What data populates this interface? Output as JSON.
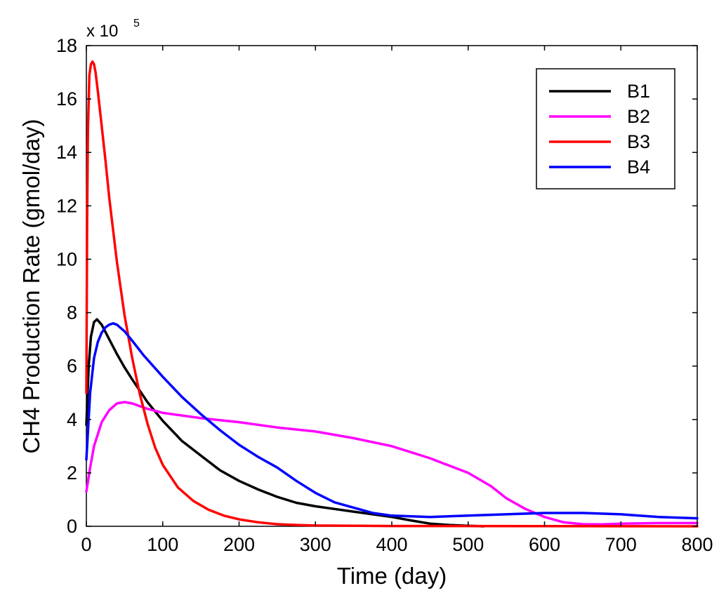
{
  "chart_data": {
    "type": "line",
    "title": "",
    "xlabel": "Time (day)",
    "ylabel": "CH4 Production Rate (gmol/day)",
    "y_multiplier_base": "x 10",
    "y_multiplier_exp": "5",
    "xlim": [
      0,
      800
    ],
    "ylim": [
      0,
      18
    ],
    "xticks": [
      0,
      100,
      200,
      300,
      400,
      500,
      600,
      700,
      800
    ],
    "yticks": [
      0,
      2,
      4,
      6,
      8,
      10,
      12,
      14,
      16,
      18
    ],
    "grid": false,
    "legend_position": "top-right",
    "series": [
      {
        "name": "B1",
        "color": "#000000",
        "x": [
          0,
          3,
          6,
          10,
          14,
          20,
          30,
          40,
          50,
          60,
          80,
          100,
          125,
          150,
          175,
          200,
          225,
          250,
          275,
          300,
          325,
          350,
          375,
          400,
          425,
          450,
          475,
          500,
          520
        ],
        "y": [
          3.8,
          6.0,
          7.1,
          7.65,
          7.75,
          7.55,
          7.0,
          6.45,
          5.95,
          5.5,
          4.65,
          3.95,
          3.2,
          2.65,
          2.1,
          1.7,
          1.38,
          1.1,
          0.88,
          0.75,
          0.65,
          0.55,
          0.45,
          0.35,
          0.22,
          0.1,
          0.05,
          0.02,
          0.0
        ]
      },
      {
        "name": "B2",
        "color": "#ff00ff",
        "x": [
          0,
          5,
          10,
          20,
          30,
          40,
          50,
          60,
          70,
          80,
          100,
          150,
          200,
          250,
          300,
          350,
          400,
          450,
          500,
          530,
          550,
          575,
          600,
          625,
          650,
          675,
          700,
          750,
          800
        ],
        "y": [
          1.3,
          2.2,
          3.0,
          3.9,
          4.35,
          4.6,
          4.65,
          4.6,
          4.5,
          4.4,
          4.25,
          4.05,
          3.9,
          3.7,
          3.55,
          3.3,
          3.0,
          2.55,
          2.0,
          1.5,
          1.05,
          0.65,
          0.35,
          0.15,
          0.08,
          0.07,
          0.1,
          0.12,
          0.12
        ]
      },
      {
        "name": "B3",
        "color": "#ff0000",
        "x": [
          0,
          1,
          2,
          4,
          6,
          8,
          10,
          12,
          15,
          20,
          25,
          30,
          40,
          50,
          60,
          70,
          80,
          90,
          100,
          120,
          140,
          160,
          180,
          200,
          225,
          250,
          275,
          300,
          350,
          400,
          800
        ],
        "y": [
          5.0,
          11.5,
          14.8,
          16.9,
          17.3,
          17.4,
          17.3,
          17.0,
          16.3,
          15.0,
          13.7,
          12.3,
          9.9,
          7.9,
          6.3,
          4.95,
          3.85,
          2.95,
          2.3,
          1.45,
          0.95,
          0.62,
          0.4,
          0.26,
          0.15,
          0.08,
          0.05,
          0.03,
          0.02,
          0.01,
          0.0
        ]
      },
      {
        "name": "B4",
        "color": "#0000ff",
        "x": [
          0,
          5,
          10,
          15,
          20,
          25,
          30,
          35,
          40,
          50,
          60,
          75,
          100,
          125,
          150,
          175,
          200,
          225,
          250,
          275,
          300,
          325,
          350,
          375,
          400,
          450,
          500,
          550,
          600,
          650,
          700,
          750,
          800
        ],
        "y": [
          2.5,
          5.0,
          6.3,
          6.9,
          7.25,
          7.45,
          7.55,
          7.6,
          7.55,
          7.3,
          6.95,
          6.4,
          5.6,
          4.85,
          4.2,
          3.6,
          3.05,
          2.6,
          2.2,
          1.7,
          1.25,
          0.9,
          0.7,
          0.5,
          0.4,
          0.35,
          0.4,
          0.45,
          0.5,
          0.5,
          0.45,
          0.35,
          0.3
        ]
      }
    ]
  }
}
